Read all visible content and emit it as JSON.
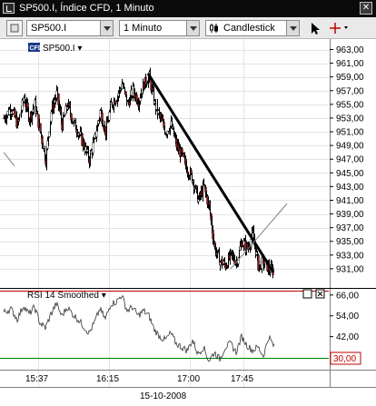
{
  "window": {
    "title": "SP500.I, Índice CFD, 1 Minuto",
    "close_glyph": "✕"
  },
  "toolbar": {
    "symbol_value": "SP500.I",
    "interval_value": "1 Minuto",
    "chart_type_value": "Candlestick"
  },
  "chart": {
    "instrument_tag": "CFD",
    "instrument_label": "SP500.I ▾",
    "indicator_label": "RSI 14 Smoothed ▾",
    "date_label": "15-10-2008",
    "colors": {
      "bull": "#ffffff",
      "bear": "#8b1a1a",
      "wick": "#000000",
      "trendline": "#000000",
      "thin_line": "#808080",
      "rsi_upper": "#c00000",
      "rsi_lower": "#008000",
      "rsi_badge": "#c00000"
    },
    "rsi_current_badge": "30,00"
  },
  "chart_data": {
    "type": "candlestick",
    "price_axis": {
      "ylim": [
        929,
        964
      ],
      "ticks": [
        "963,00",
        "961,00",
        "959,00",
        "957,00",
        "955,00",
        "953,00",
        "951,00",
        "949,00",
        "947,00",
        "945,00",
        "943,00",
        "941,00",
        "939,00",
        "937,00",
        "935,00",
        "933,00",
        "931,00"
      ]
    },
    "rsi_axis": {
      "ylim": [
        24,
        68
      ],
      "ticks": [
        "66,00",
        "54,00",
        "42,00"
      ],
      "levels": [
        70,
        30
      ]
    },
    "time_axis": {
      "ticks": [
        "15:37",
        "16:15",
        "17:00",
        "17:45"
      ]
    },
    "price_path": [
      [
        0,
        953
      ],
      [
        8,
        954.5
      ],
      [
        15,
        952
      ],
      [
        22,
        956
      ],
      [
        28,
        953
      ],
      [
        34,
        955
      ],
      [
        40,
        951
      ],
      [
        46,
        947
      ],
      [
        52,
        954
      ],
      [
        58,
        956.5
      ],
      [
        64,
        952
      ],
      [
        70,
        955
      ],
      [
        76,
        952.5
      ],
      [
        82,
        951
      ],
      [
        88,
        949
      ],
      [
        94,
        947
      ],
      [
        100,
        950
      ],
      [
        106,
        954
      ],
      [
        112,
        951
      ],
      [
        118,
        955
      ],
      [
        124,
        956
      ],
      [
        130,
        958
      ],
      [
        136,
        955
      ],
      [
        142,
        957
      ],
      [
        148,
        955.5
      ],
      [
        154,
        958
      ],
      [
        160,
        959
      ],
      [
        166,
        955
      ],
      [
        172,
        953
      ],
      [
        178,
        951
      ],
      [
        184,
        952
      ],
      [
        190,
        949
      ],
      [
        196,
        947.5
      ],
      [
        202,
        945.5
      ],
      [
        208,
        944
      ],
      [
        214,
        941
      ],
      [
        220,
        943
      ],
      [
        226,
        940
      ],
      [
        232,
        934
      ],
      [
        238,
        932
      ],
      [
        244,
        931.5
      ],
      [
        250,
        933
      ],
      [
        256,
        932
      ],
      [
        262,
        935
      ],
      [
        268,
        934
      ],
      [
        274,
        936
      ],
      [
        280,
        931.5
      ],
      [
        286,
        932
      ],
      [
        292,
        931
      ],
      [
        298,
        930.5
      ]
    ],
    "rsi_path": [
      [
        0,
        56
      ],
      [
        8,
        58
      ],
      [
        15,
        52
      ],
      [
        22,
        60
      ],
      [
        28,
        55
      ],
      [
        34,
        59
      ],
      [
        40,
        50
      ],
      [
        46,
        47
      ],
      [
        52,
        55
      ],
      [
        58,
        61
      ],
      [
        64,
        54
      ],
      [
        70,
        59
      ],
      [
        76,
        55
      ],
      [
        82,
        52
      ],
      [
        88,
        48
      ],
      [
        94,
        44
      ],
      [
        100,
        50
      ],
      [
        106,
        58
      ],
      [
        112,
        52
      ],
      [
        118,
        61
      ],
      [
        124,
        62
      ],
      [
        130,
        66
      ],
      [
        136,
        57
      ],
      [
        142,
        59
      ],
      [
        148,
        54
      ],
      [
        154,
        57
      ],
      [
        160,
        54
      ],
      [
        166,
        46
      ],
      [
        172,
        42
      ],
      [
        178,
        40
      ],
      [
        184,
        44
      ],
      [
        190,
        38
      ],
      [
        196,
        36
      ],
      [
        202,
        34
      ],
      [
        208,
        40
      ],
      [
        214,
        32
      ],
      [
        220,
        36
      ],
      [
        226,
        28
      ],
      [
        232,
        33
      ],
      [
        238,
        29
      ],
      [
        244,
        36
      ],
      [
        250,
        38
      ],
      [
        256,
        33
      ],
      [
        262,
        42
      ],
      [
        268,
        37
      ],
      [
        274,
        34
      ],
      [
        280,
        36
      ],
      [
        286,
        31
      ],
      [
        292,
        42
      ],
      [
        298,
        36
      ]
    ],
    "trendline_thick": [
      [
        159,
        959.5
      ],
      [
        297,
        930.5
      ]
    ],
    "trendline_thin": [
      [
        250,
        931
      ],
      [
        312,
        940.5
      ]
    ],
    "thin_stub": [
      [
        0,
        948
      ],
      [
        12,
        946
      ]
    ]
  }
}
